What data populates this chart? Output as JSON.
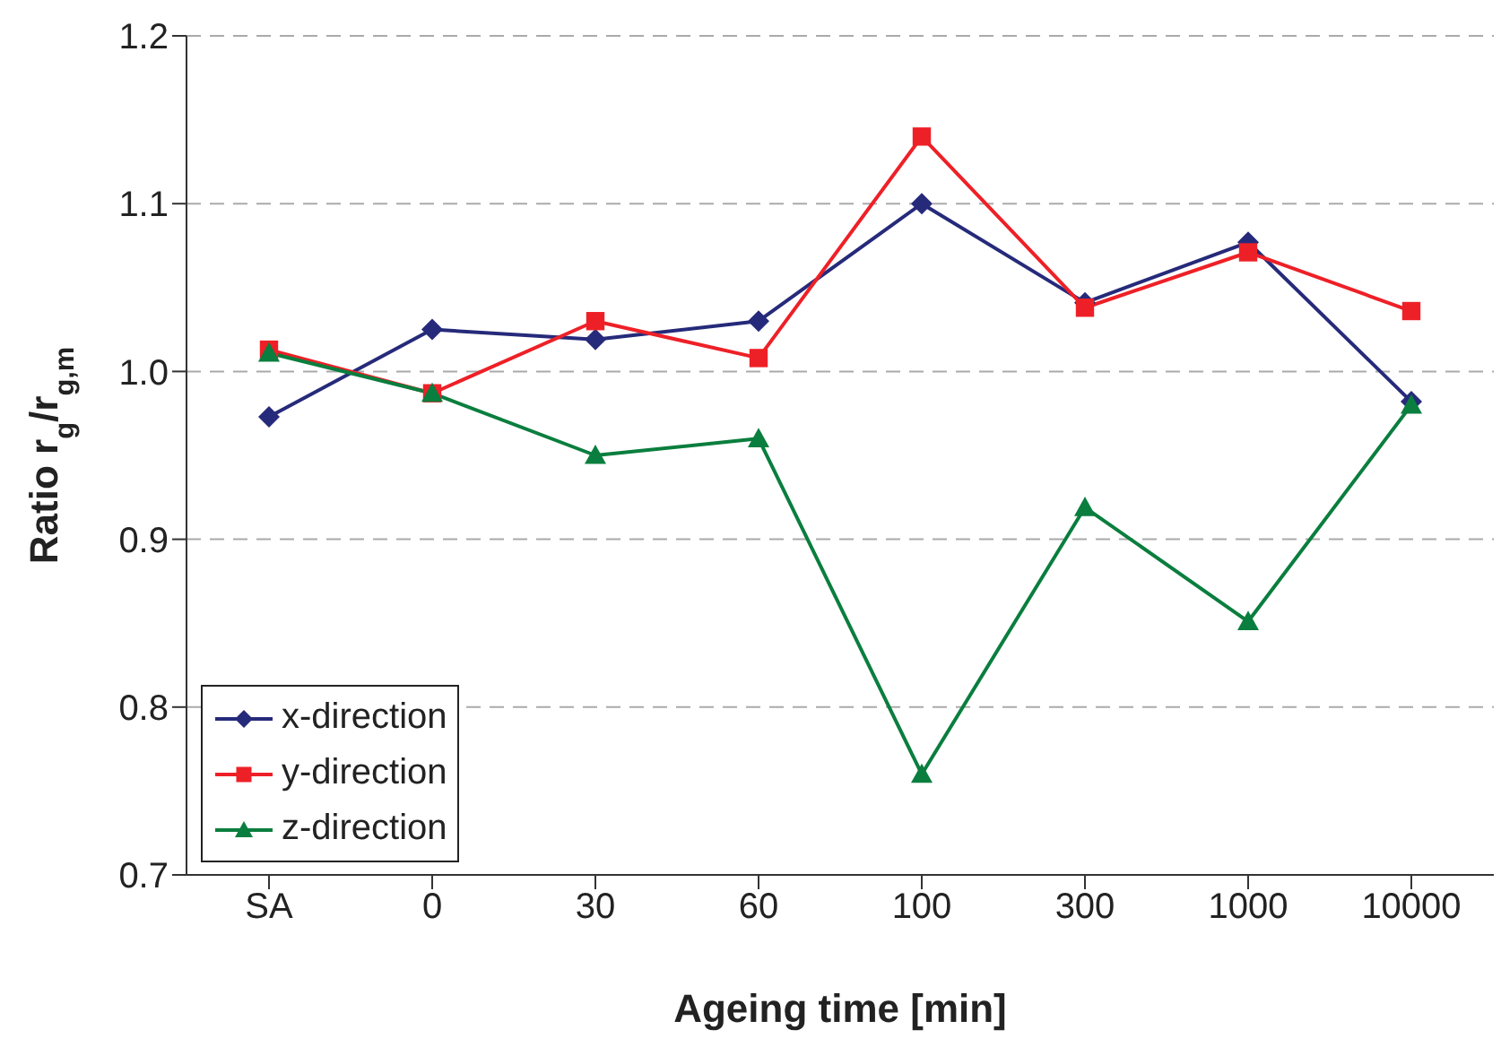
{
  "chart_data": {
    "type": "line",
    "xlabel": "Ageing time [min]",
    "ylabel": "Ratio r$_{g}$/r$_{g,m}$",
    "categories": [
      "SA",
      "0",
      "30",
      "60",
      "100",
      "300",
      "1000",
      "10000"
    ],
    "ylim": [
      0.7,
      1.2
    ],
    "yticks": [
      0.7,
      0.8,
      0.9,
      {
        "value": 1,
        "label": "1.0"
      },
      1.1,
      1.2
    ],
    "grid": "y",
    "legend": "bottom left",
    "line_style": "solid",
    "series": [
      {
        "name": "x-direction",
        "color": "#262a7a",
        "marker": "diamond",
        "values": [
          0.973,
          1.025,
          1.019,
          1.03,
          1.1,
          1.041,
          1.077,
          0.982
        ]
      },
      {
        "name": "y-direction",
        "color": "#ee2027",
        "marker": "square",
        "values": [
          1.013,
          0.987,
          1.03,
          1.008,
          1.14,
          1.038,
          1.071,
          1.036
        ]
      },
      {
        "name": "z-direction",
        "color": "#0a7e3e",
        "marker": "triangle",
        "values": [
          1.011,
          0.987,
          0.95,
          0.96,
          0.76,
          0.919,
          0.851,
          0.98
        ]
      }
    ]
  }
}
